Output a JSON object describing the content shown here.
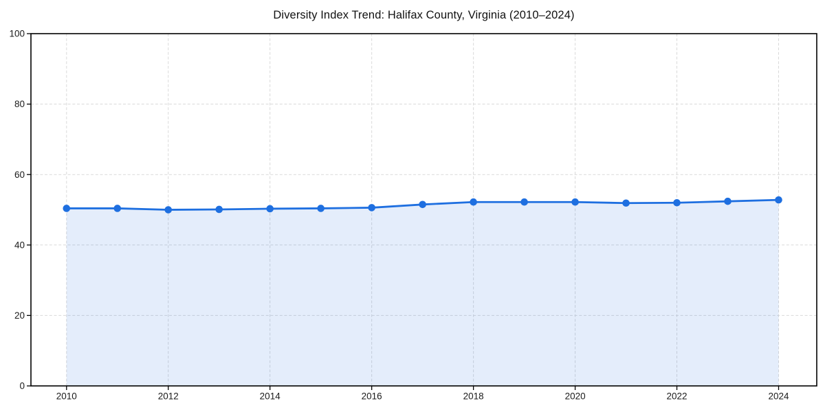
{
  "chart_data": {
    "type": "line",
    "title": "Diversity Index Trend: Halifax County, Virginia (2010–2024)",
    "x": [
      2010,
      2011,
      2012,
      2013,
      2014,
      2015,
      2016,
      2017,
      2018,
      2019,
      2020,
      2021,
      2022,
      2023,
      2024
    ],
    "series": [
      {
        "name": "Diversity Index",
        "values": [
          50.4,
          50.4,
          50.0,
          50.1,
          50.3,
          50.4,
          50.6,
          51.5,
          52.2,
          52.2,
          52.2,
          51.9,
          52.0,
          52.4,
          52.8
        ],
        "marker": "circle",
        "area_fill": true
      }
    ],
    "xlabel": "",
    "ylabel": "",
    "xlim": [
      2009.3,
      2024.75
    ],
    "ylim": [
      0,
      100
    ],
    "x_ticks": [
      2010,
      2012,
      2014,
      2016,
      2018,
      2020,
      2022,
      2024
    ],
    "y_ticks": [
      0,
      20,
      40,
      60,
      80,
      100
    ],
    "grid": true,
    "grid_style": "dashed",
    "legend_position": "none"
  },
  "colors": {
    "line": "#1e6fe0",
    "marker": "#1e6fe0",
    "area": "rgba(30, 111, 224, 0.12)",
    "grid": "#d9d9d9",
    "axis": "#000000",
    "tick_text": "#1a1a1a",
    "title_text": "#111111",
    "background": "#ffffff"
  }
}
